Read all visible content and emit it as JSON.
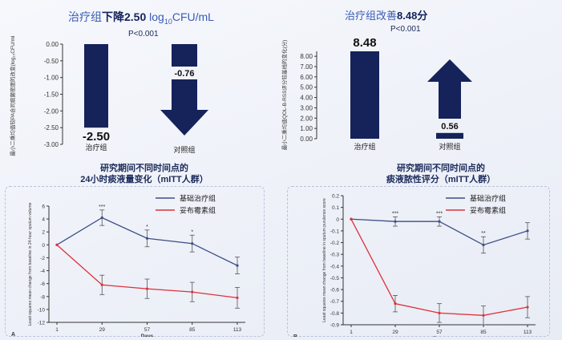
{
  "chart_data": [
    {
      "type": "bar",
      "title_prefix": "治疗组",
      "title_bold": "下降2.50",
      "title_unit": "log",
      "title_unit_sub": "10",
      "title_unit_tail": "CFU/mL",
      "pvalue": "P<0.001",
      "ylabel": "最小二乘均值较PA合同痰菌密度的改变(log₁₀CFU/mL)",
      "categories": [
        "治疗组",
        "对照组"
      ],
      "values": [
        -2.5,
        -0.76
      ],
      "value_labels": [
        "-2.50",
        "-0.76"
      ],
      "yticks": [
        "0.00",
        "-0.50",
        "-1.00",
        "-1.50",
        "-2.00",
        "-2.50",
        "-3.00"
      ],
      "ylim": [
        -3.0,
        0.0
      ],
      "colors": {
        "bar": "#15235a",
        "arrow": "#15235a"
      }
    },
    {
      "type": "bar",
      "title_prefix": "治疗组改善",
      "title_bold": "8.48分",
      "pvalue": "P<0.001",
      "ylabel": "最小二乘均值QOL-B-RSS评分较基线的变化(分)",
      "categories": [
        "治疗组",
        "对照组"
      ],
      "values": [
        8.48,
        0.56
      ],
      "value_labels": [
        "8.48",
        "0.56"
      ],
      "yticks": [
        "8.00",
        "7.00",
        "6.00",
        "5.00",
        "4.00",
        "3.00",
        "2.00",
        "1.00",
        "0.00"
      ],
      "ylim": [
        0,
        8.48
      ],
      "colors": {
        "bar": "#15235a",
        "arrow": "#15235a"
      }
    },
    {
      "type": "line",
      "title_line1": "研究期间不同时间点的",
      "title_line2": "24小时痰液量变化（mITT人群）",
      "panel_label": "A",
      "ylabel": "Least squares mean change from baseline in 24-hour sputum volume",
      "xlabel": "Days",
      "x": [
        1,
        29,
        57,
        85,
        113
      ],
      "xticks": [
        "1",
        "29",
        "57",
        "85",
        "113"
      ],
      "yticks": [
        "6",
        "4",
        "2",
        "0",
        "-2",
        "-4",
        "-6",
        "-8",
        "-10",
        "-12"
      ],
      "ylim": [
        -12,
        6
      ],
      "series": [
        {
          "name": "基础治疗组",
          "color": "#3d4f86",
          "values": [
            0,
            4.2,
            1,
            0.2,
            -3.2
          ],
          "err": [
            0,
            1.2,
            1.3,
            1.3,
            1.3
          ],
          "sig": [
            "",
            "***",
            "*",
            "*",
            ""
          ]
        },
        {
          "name": "妥布霉素组",
          "color": "#e0303a",
          "values": [
            0,
            -6.2,
            -6.8,
            -7.3,
            -8.2
          ],
          "err": [
            0,
            1.5,
            1.5,
            1.5,
            1.6
          ],
          "sig": [
            "",
            "",
            "",
            "",
            ""
          ]
        }
      ]
    },
    {
      "type": "line",
      "title_line1": "研究期间不同时间点的",
      "title_line2": "痰液脓性评分（mITT人群）",
      "panel_label": "B",
      "ylabel": "Least squares mean change from baseline in sputum purulence score",
      "xlabel": "Days",
      "x": [
        1,
        29,
        57,
        85,
        113
      ],
      "xticks": [
        "1",
        "29",
        "57",
        "85",
        "113"
      ],
      "yticks": [
        "0.2",
        "0.1",
        "0",
        "-0.1",
        "-0.2",
        "-0.3",
        "-0.4",
        "-0.5",
        "-0.6",
        "-0.7",
        "-0.8",
        "-0.9"
      ],
      "ylim": [
        -0.9,
        0.2
      ],
      "series": [
        {
          "name": "基础治疗组",
          "color": "#3d4f86",
          "values": [
            0,
            -0.02,
            -0.02,
            -0.22,
            -0.1
          ],
          "err": [
            0,
            0.04,
            0.04,
            0.07,
            0.07
          ],
          "sig": [
            "",
            "***",
            "***",
            "**",
            ""
          ]
        },
        {
          "name": "妥布霉素组",
          "color": "#e0303a",
          "values": [
            0,
            -0.72,
            -0.8,
            -0.82,
            -0.75
          ],
          "err": [
            0,
            0.07,
            0.08,
            0.08,
            0.09
          ],
          "sig": [
            "",
            "",
            "",
            "",
            ""
          ]
        }
      ]
    }
  ]
}
